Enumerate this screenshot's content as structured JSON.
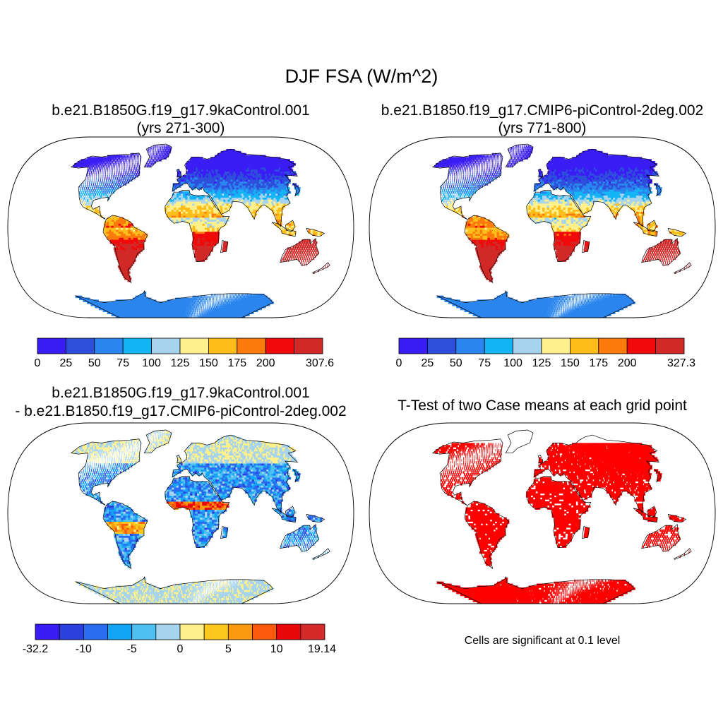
{
  "figure": {
    "title": "DJF FSA (W/m^2)",
    "note": "Cells are significant at 0.1 level"
  },
  "panels": [
    {
      "id": "case1",
      "title_line1": "b.e21.B1850G.f19_g17.9kaControl.001",
      "title_line2": "(yrs 271-300)",
      "field": "absolute",
      "colorbar": {
        "colors": [
          "#3a1cf5",
          "#2e4fdc",
          "#2a86ee",
          "#14b4f5",
          "#a6d4ee",
          "#fef08a",
          "#fdbd1a",
          "#fb7a0c",
          "#f00a0a",
          "#d12828"
        ],
        "labels": [
          "0",
          "25",
          "50",
          "75",
          "100",
          "125",
          "150",
          "175",
          "200",
          "307.6"
        ]
      }
    },
    {
      "id": "case2",
      "title_line1": "b.e21.B1850.f19_g17.CMIP6-piControl-2deg.002",
      "title_line2": "(yrs 771-800)",
      "field": "absolute",
      "colorbar": {
        "colors": [
          "#3a1cf5",
          "#2e4fdc",
          "#2a86ee",
          "#14b4f5",
          "#a6d4ee",
          "#fef08a",
          "#fdbd1a",
          "#fb7a0c",
          "#f00a0a",
          "#d12828"
        ],
        "labels": [
          "0",
          "25",
          "50",
          "75",
          "100",
          "125",
          "150",
          "175",
          "200",
          "327.3"
        ]
      }
    },
    {
      "id": "difference",
      "title_line1": "b.e21.B1850G.f19_g17.9kaControl.001",
      "title_line2": "- b.e21.B1850.f19_g17.CMIP6-piControl-2deg.002",
      "field": "difference",
      "colorbar": {
        "colors": [
          "#3a1cf5",
          "#2c40e0",
          "#2a6cf0",
          "#12a4f5",
          "#4cc0f0",
          "#a6d4ee",
          "#fef08a",
          "#fdc81e",
          "#fb9a10",
          "#fb5a0c",
          "#e8070a",
          "#d42a2a"
        ],
        "labels": [
          "-32.2",
          "-10",
          "-5",
          "0",
          "5",
          "10",
          "19.14"
        ]
      }
    },
    {
      "id": "ttest",
      "title_line1": "T-Test of two Case means at each grid point",
      "field": "significance",
      "significance_color": "#ff0000"
    }
  ]
}
